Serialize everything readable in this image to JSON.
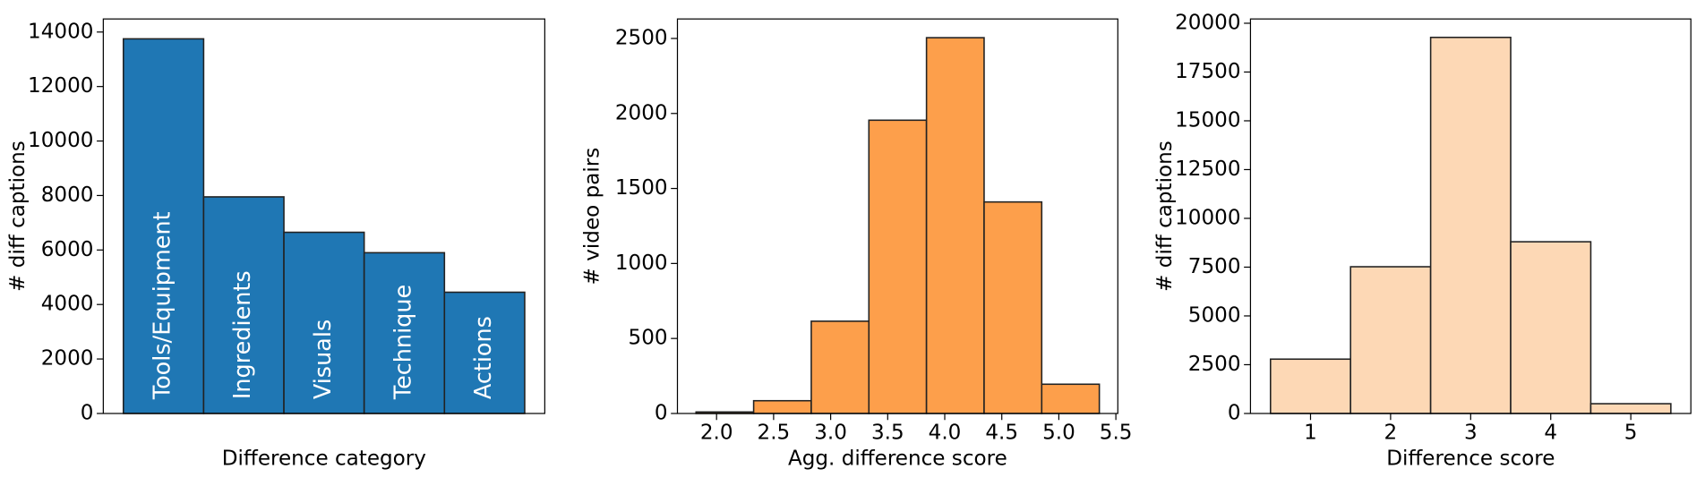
{
  "chart_data": [
    {
      "type": "bar",
      "xlabel": "Difference category",
      "ylabel": "# diff captions",
      "categories": [
        "Tools/Equipment",
        "Ingredients",
        "Visuals",
        "Technique",
        "Actions"
      ],
      "values": [
        13750,
        7950,
        6650,
        5900,
        4450
      ],
      "color": "#1f77b4",
      "category_labels": "inside",
      "ylim": [
        0,
        14480
      ],
      "yticks": [
        0,
        2000,
        4000,
        6000,
        8000,
        10000,
        12000,
        14000
      ]
    },
    {
      "type": "histogram",
      "xlabel": "Agg. difference score",
      "ylabel": "# video pairs",
      "bins": [
        1.82,
        2.325,
        2.83,
        3.335,
        3.84,
        4.345,
        4.85,
        5.355
      ],
      "values": [
        10,
        85,
        615,
        1955,
        2505,
        1410,
        195
      ],
      "color": "#fd9f4b",
      "xlim": [
        1.657,
        5.517
      ],
      "xticks": [
        {
          "value": 2,
          "label": "2.0"
        },
        2.5,
        {
          "value": 3,
          "label": "3.0"
        },
        3.5,
        {
          "value": 4,
          "label": "4.0"
        },
        4.5,
        {
          "value": 5,
          "label": "5.0"
        },
        5.5
      ],
      "ylim": [
        0,
        2630
      ],
      "yticks": [
        0,
        500,
        1000,
        1500,
        2000,
        2500
      ]
    },
    {
      "type": "bar",
      "xlabel": "Difference score",
      "ylabel": "# diff captions",
      "categories": [
        "1",
        "2",
        "3",
        "4",
        "5"
      ],
      "values": [
        2785,
        7520,
        19275,
        8800,
        500
      ],
      "color": "#fdd8b5",
      "category_labels": "below",
      "ylim": [
        0,
        20220
      ],
      "yticks": [
        0,
        2500,
        5000,
        7500,
        10000,
        12500,
        15000,
        17500,
        20000
      ]
    }
  ]
}
